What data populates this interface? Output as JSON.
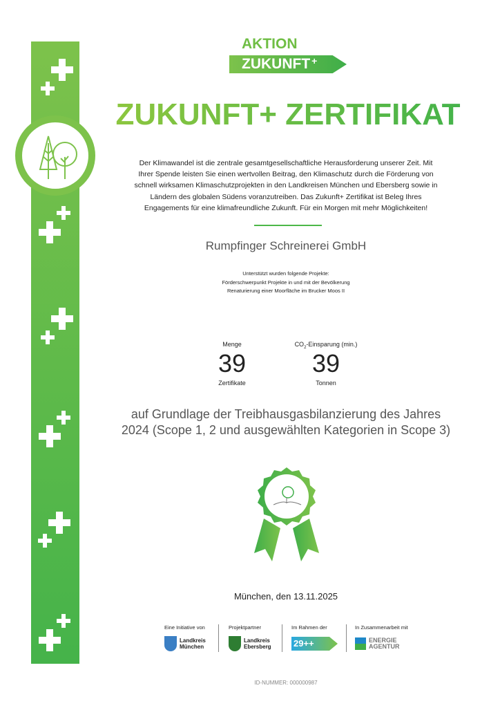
{
  "logo": {
    "line1": "AKTION",
    "line2": "ZUKUNFT",
    "plus": "+"
  },
  "title": "ZUKUNFT+ ZERTIFIKAT",
  "intro": "Der Klimawandel ist die zentrale gesamtgesellschaftliche Herausforderung unserer Zeit. Mit Ihrer Spende leisten Sie einen wertvollen Beitrag, den Klimaschutz durch die Förderung von schnell wirksamen Klimaschutzprojekten in den Landkreisen München und Ebersberg sowie in Ländern des globalen Südens voranzutreiben. Das Zukunft+ Zertifikat ist Beleg Ihres Engagements für eine klimafreundliche Zukunft. Für ein Morgen mit mehr Möglichkeiten!",
  "company": "Rumpfinger Schreinerei GmbH",
  "projects": {
    "heading": "Unterstützt wurden folgende Projekte:",
    "items": [
      "Förderschwerpunkt Projekte in und mit der Bevölkerung",
      "Renaturierung einer Moorfläche im Brucker Moos II"
    ]
  },
  "stats": {
    "quantity": {
      "label": "Menge",
      "value": "39",
      "unit": "Zertifikate"
    },
    "co2": {
      "label_pre": "CO",
      "label_sub": "2",
      "label_post": "-Einsparung (min.)",
      "value": "39",
      "unit": "Tonnen"
    }
  },
  "basis": "auf Grundlage der Treibhausgasbilanzierung des Jahres 2024 (Scope 1, 2 und ausgewählten Kategorien in Scope 3)",
  "date": "München, den 13.11.2025",
  "partners": [
    {
      "label": "Eine Initiative von",
      "name": "Landkreis München"
    },
    {
      "label": "Projektpartner",
      "name": "Landkreis Ebersberg"
    },
    {
      "label": "Im Rahmen der",
      "name": "29++"
    },
    {
      "label": "In Zusammenarbeit mit",
      "name": "ENERGIE AGENTUR"
    }
  ],
  "id_number": "ID-NUMMER: 000000987",
  "colors": {
    "green_light": "#7dc24b",
    "green_dark": "#3fae49"
  }
}
